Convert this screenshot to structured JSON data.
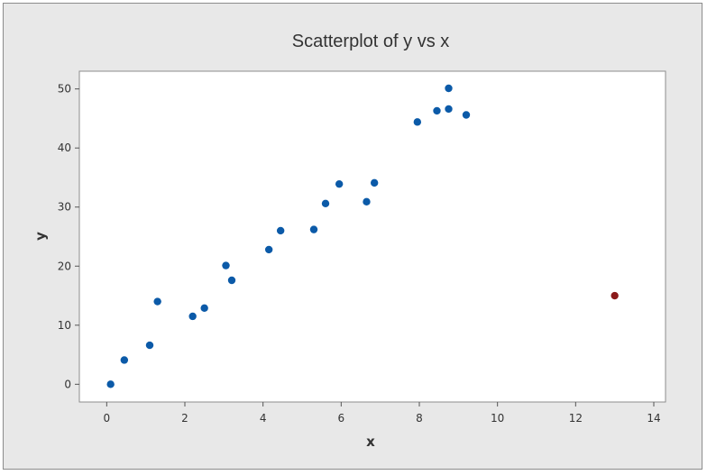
{
  "chart_data": {
    "type": "scatter",
    "title": "Scatterplot of y vs x",
    "xlabel": "x",
    "ylabel": "y",
    "xlim": [
      -0.7,
      14.3
    ],
    "ylim": [
      -3,
      53
    ],
    "xticks": [
      0,
      2,
      4,
      6,
      8,
      10,
      12,
      14
    ],
    "yticks": [
      0,
      10,
      20,
      30,
      40,
      50
    ],
    "grid": false,
    "legend": "none",
    "colors": {
      "main": "#0b5aa8",
      "highlight": "#8b1a1a",
      "frame_bg": "#e8e8e8",
      "plot_bg": "#ffffff"
    },
    "series": [
      {
        "values": [
          {
            "x": 0.1,
            "y": 0.0
          },
          {
            "x": 0.45,
            "y": 4.1
          },
          {
            "x": 1.1,
            "y": 6.6
          },
          {
            "x": 1.3,
            "y": 14.0
          },
          {
            "x": 2.2,
            "y": 11.5
          },
          {
            "x": 2.5,
            "y": 12.9
          },
          {
            "x": 3.05,
            "y": 20.1
          },
          {
            "x": 3.2,
            "y": 17.6
          },
          {
            "x": 4.15,
            "y": 22.8
          },
          {
            "x": 4.45,
            "y": 26.0
          },
          {
            "x": 5.3,
            "y": 26.2
          },
          {
            "x": 5.6,
            "y": 30.6
          },
          {
            "x": 5.95,
            "y": 33.9
          },
          {
            "x": 6.65,
            "y": 30.9
          },
          {
            "x": 6.85,
            "y": 34.1
          },
          {
            "x": 7.95,
            "y": 44.4
          },
          {
            "x": 8.45,
            "y": 46.3
          },
          {
            "x": 8.75,
            "y": 50.1
          },
          {
            "x": 8.75,
            "y": 46.6
          },
          {
            "x": 9.2,
            "y": 45.6
          }
        ]
      },
      {
        "values": [
          {
            "x": 13.0,
            "y": 15.0
          }
        ]
      }
    ]
  }
}
